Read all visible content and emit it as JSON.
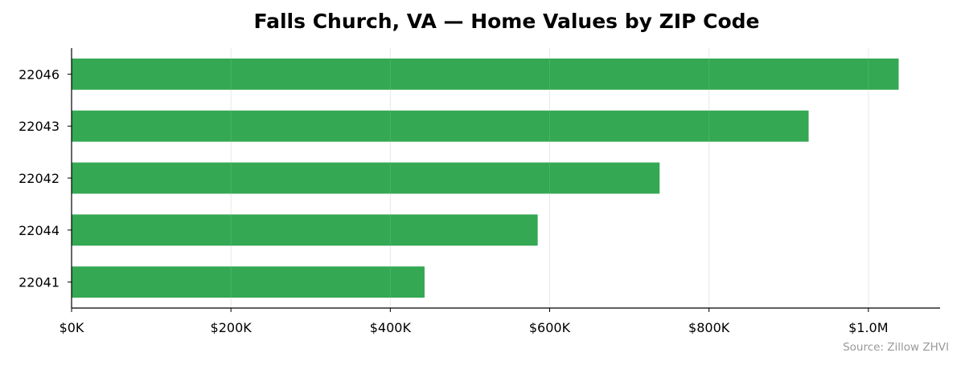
{
  "chart_data": {
    "type": "bar",
    "orientation": "horizontal",
    "title": "Falls Church, VA — Home Values by ZIP Code",
    "xlabel": "",
    "ylabel": "",
    "categories": [
      "22046",
      "22043",
      "22042",
      "22044",
      "22041"
    ],
    "values": [
      1038000,
      925000,
      738000,
      585000,
      443000
    ],
    "xlim": [
      0,
      1090000
    ],
    "xticks": [
      0,
      200000,
      400000,
      600000,
      800000,
      1000000
    ],
    "xtick_labels": [
      "$0K",
      "$200K",
      "$400K",
      "$600K",
      "$800K",
      "$1.0M"
    ],
    "grid": "vertical",
    "legend": "none",
    "bar_color": "#34a853",
    "source_note": "Source: Zillow ZHVI"
  }
}
